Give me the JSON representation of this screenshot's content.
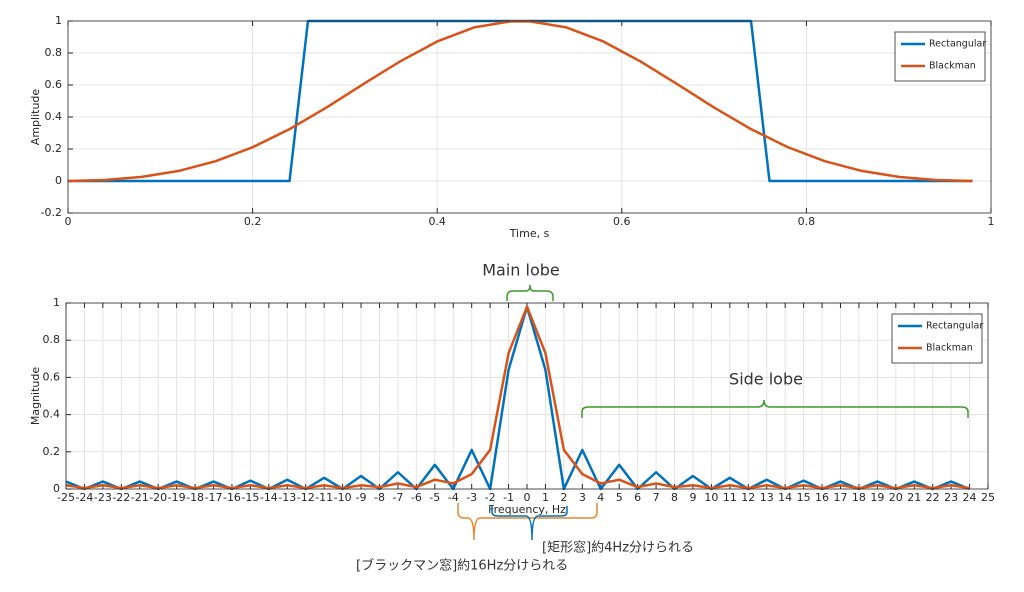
{
  "chart_data": [
    {
      "type": "line",
      "ylabel": "Amplitude",
      "xlabel": "Time, s",
      "xlim": [
        0,
        1
      ],
      "xticks": [
        0,
        0.2,
        0.4,
        0.6,
        0.8,
        1
      ],
      "ylim": [
        -0.2,
        1
      ],
      "yticks": [
        -0.2,
        0,
        0.2,
        0.4,
        0.6,
        0.8,
        1
      ],
      "grid": true,
      "legend": "upper right",
      "series": [
        {
          "name": "Rectangular",
          "color": "#0072BD",
          "x": [
            0,
            0.24,
            0.26,
            0.74,
            0.76,
            0.98
          ],
          "values": [
            0,
            0,
            1,
            1,
            0,
            0
          ]
        },
        {
          "name": "Blackman",
          "color": "#D95319",
          "x": [
            0,
            0.04,
            0.08,
            0.12,
            0.16,
            0.2,
            0.24,
            0.28,
            0.32,
            0.36,
            0.4,
            0.44,
            0.48,
            0.5,
            0.54,
            0.58,
            0.62,
            0.66,
            0.7,
            0.74,
            0.78,
            0.82,
            0.86,
            0.9,
            0.94,
            0.98
          ],
          "values": [
            0,
            0.006,
            0.026,
            0.063,
            0.124,
            0.211,
            0.324,
            0.459,
            0.606,
            0.748,
            0.872,
            0.96,
            0.998,
            0.998,
            0.96,
            0.872,
            0.748,
            0.606,
            0.459,
            0.324,
            0.211,
            0.124,
            0.063,
            0.026,
            0.006,
            0
          ]
        }
      ]
    },
    {
      "type": "line",
      "ylabel": "Magnitude",
      "xlabel": "Frequency, Hz",
      "xlim": [
        -25,
        25
      ],
      "xticks": [
        -25,
        -24,
        -23,
        -22,
        -21,
        -20,
        -19,
        -18,
        -17,
        -16,
        -15,
        -14,
        -13,
        -12,
        -11,
        -10,
        -9,
        -8,
        -7,
        -6,
        -5,
        -4,
        -3,
        -2,
        -1,
        0,
        1,
        2,
        3,
        4,
        5,
        6,
        7,
        8,
        9,
        10,
        11,
        12,
        13,
        14,
        15,
        16,
        17,
        18,
        19,
        20,
        21,
        22,
        23,
        24,
        25
      ],
      "ylim": [
        0,
        1
      ],
      "yticks": [
        0,
        0.2,
        0.4,
        0.6,
        0.8,
        1
      ],
      "grid": true,
      "legend": "upper right",
      "x": [
        -25,
        -24,
        -23,
        -22,
        -21,
        -20,
        -19,
        -18,
        -17,
        -16,
        -15,
        -14,
        -13,
        -12,
        -11,
        -10,
        -9,
        -8,
        -7,
        -6,
        -5,
        -4,
        -3,
        -2,
        -1,
        0,
        1,
        2,
        3,
        4,
        5,
        6,
        7,
        8,
        9,
        10,
        11,
        12,
        13,
        14,
        15,
        16,
        17,
        18,
        19,
        20,
        21,
        22,
        23,
        24
      ],
      "series": [
        {
          "name": "Rectangular",
          "color": "#0072BD",
          "values": [
            0.04,
            0,
            0.04,
            0,
            0.04,
            0,
            0.04,
            0,
            0.04,
            0,
            0.045,
            0,
            0.05,
            0,
            0.06,
            0,
            0.07,
            0,
            0.09,
            0,
            0.13,
            0,
            0.21,
            0,
            0.64,
            0.98,
            0.64,
            0,
            0.21,
            0,
            0.13,
            0,
            0.09,
            0,
            0.07,
            0,
            0.06,
            0,
            0.05,
            0,
            0.045,
            0,
            0.04,
            0,
            0.04,
            0,
            0.04,
            0,
            0.04,
            0
          ]
        },
        {
          "name": "Blackman",
          "color": "#D95319",
          "values": [
            0.02,
            0.005,
            0.02,
            0.005,
            0.02,
            0.005,
            0.02,
            0.005,
            0.02,
            0.005,
            0.02,
            0.005,
            0.02,
            0.005,
            0.02,
            0.005,
            0.02,
            0.01,
            0.03,
            0.01,
            0.05,
            0.03,
            0.08,
            0.21,
            0.73,
            0.98,
            0.73,
            0.21,
            0.08,
            0.03,
            0.05,
            0.01,
            0.03,
            0.01,
            0.02,
            0.005,
            0.02,
            0.005,
            0.02,
            0.005,
            0.02,
            0.005,
            0.02,
            0.005,
            0.02,
            0.005,
            0.02,
            0.005,
            0.02,
            0.005
          ]
        }
      ],
      "annotations": [
        "Main lobe",
        "Side lobe",
        "[矩形窓]約4Hz分けられる",
        "[ブラックマン窓]約16Hz分けられる"
      ]
    }
  ]
}
